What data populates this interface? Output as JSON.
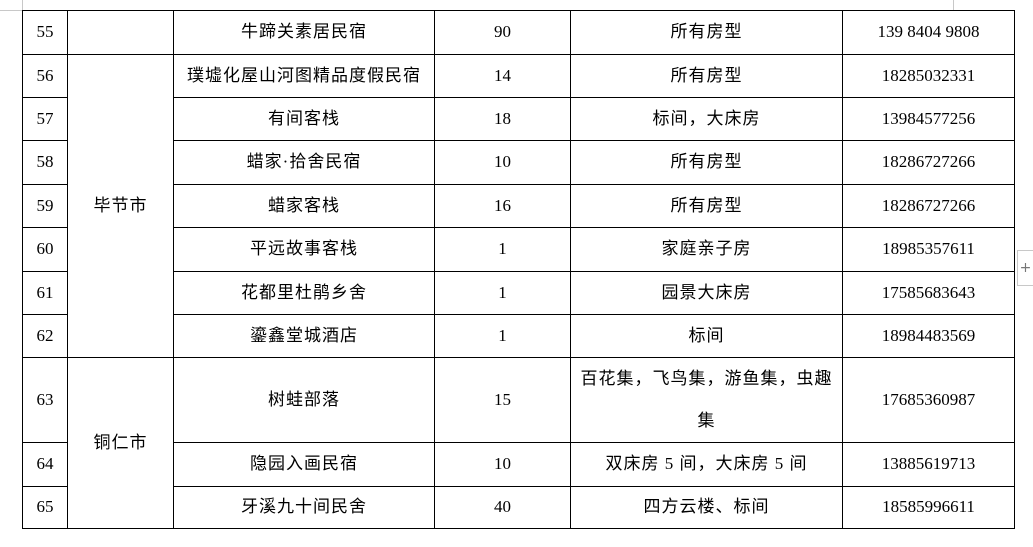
{
  "rows": [
    {
      "no": "55",
      "name": "牛蹄关素居民宿",
      "count": "90",
      "room": "所有房型",
      "phone": "139 8404 9808"
    },
    {
      "no": "56",
      "name": "璞墟化屋山河图精品度假民宿",
      "count": "14",
      "room": "所有房型",
      "phone": "18285032331"
    },
    {
      "no": "57",
      "name": "有间客栈",
      "count": "18",
      "room": "标间，大床房",
      "phone": "13984577256"
    },
    {
      "no": "58",
      "name": "蜡家·拾舍民宿",
      "count": "10",
      "room": "所有房型",
      "phone": "18286727266"
    },
    {
      "no": "59",
      "name": "蜡家客栈",
      "count": "16",
      "room": "所有房型",
      "phone": "18286727266"
    },
    {
      "no": "60",
      "name": "平远故事客栈",
      "count": "1",
      "room": "家庭亲子房",
      "phone": "18985357611"
    },
    {
      "no": "61",
      "name": "花都里杜鹃乡舍",
      "count": "1",
      "room": "园景大床房",
      "phone": "17585683643"
    },
    {
      "no": "62",
      "name": "鎏鑫堂城酒店",
      "count": "1",
      "room": "标间",
      "phone": "18984483569"
    },
    {
      "no": "63",
      "name": "树蛙部落",
      "count": "15",
      "room": "百花集，飞鸟集，游鱼集，虫趣集",
      "phone": "17685360987"
    },
    {
      "no": "64",
      "name": "隐园入画民宿",
      "count": "10",
      "room": "双床房 5 间，大床房 5 间",
      "phone": "13885619713"
    },
    {
      "no": "65",
      "name": "牙溪九十间民舍",
      "count": "40",
      "room": "四方云楼、标间",
      "phone": "18585996611"
    }
  ],
  "regions": {
    "bijie": "毕节市",
    "tongren": "铜仁市"
  },
  "ui": {
    "add_button": "+"
  }
}
